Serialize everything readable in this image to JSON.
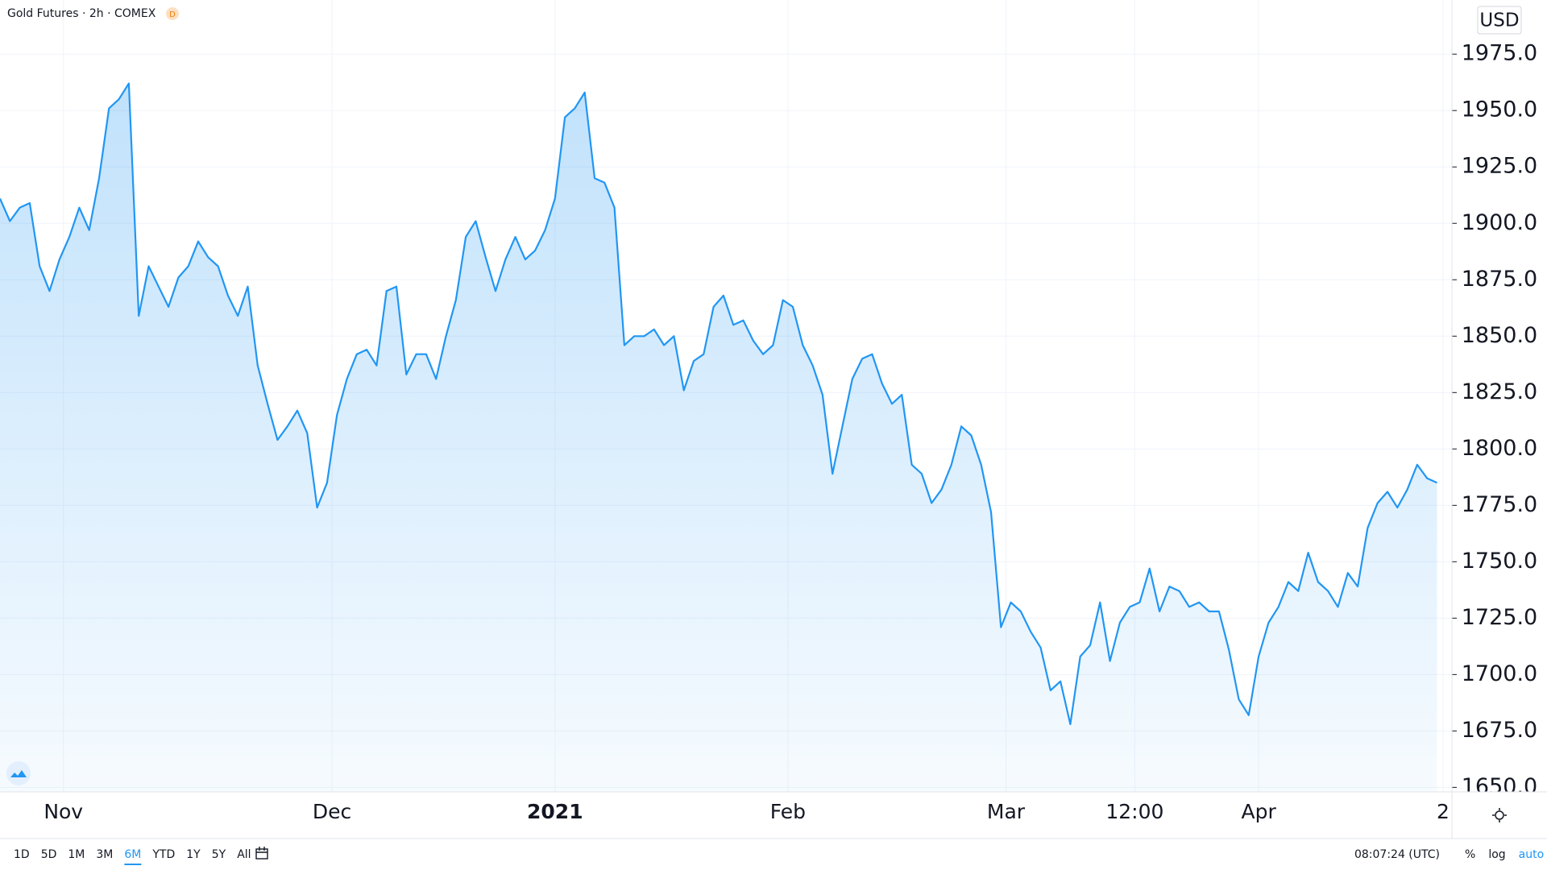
{
  "chart_data": {
    "type": "line",
    "title": "Gold Futures · 2h · COMEX",
    "badge": "D",
    "currency": "USD",
    "color": "#2196f3",
    "fill": true,
    "grid": true,
    "values": [
      1911,
      1901,
      1907,
      1909,
      1881,
      1870,
      1884,
      1894,
      1907,
      1897,
      1920,
      1951,
      1955,
      1962,
      1859,
      1881,
      1872,
      1863,
      1876,
      1881,
      1892,
      1885,
      1881,
      1868,
      1859,
      1872,
      1837,
      1820,
      1804,
      1810,
      1817,
      1807,
      1774,
      1785,
      1815,
      1831,
      1842,
      1844,
      1837,
      1870,
      1872,
      1833,
      1842,
      1842,
      1831,
      1850,
      1866,
      1894,
      1901,
      1885,
      1870,
      1884,
      1894,
      1884,
      1888,
      1897,
      1911,
      1947,
      1951,
      1958,
      1920,
      1918,
      1907,
      1846,
      1850,
      1850,
      1853,
      1846,
      1850,
      1826,
      1839,
      1842,
      1863,
      1868,
      1855,
      1857,
      1848,
      1842,
      1846,
      1866,
      1863,
      1846,
      1837,
      1824,
      1789,
      1810,
      1831,
      1840,
      1842,
      1829,
      1820,
      1824,
      1793,
      1789,
      1776,
      1782,
      1793,
      1810,
      1806,
      1793,
      1772,
      1721,
      1732,
      1728,
      1719,
      1712,
      1693,
      1697,
      1678,
      1708,
      1713,
      1732,
      1706,
      1723,
      1730,
      1732,
      1747,
      1728,
      1739,
      1737,
      1730,
      1732,
      1728,
      1728,
      1711,
      1689,
      1682,
      1708,
      1723,
      1730,
      1741,
      1737,
      1754,
      1741,
      1737,
      1730,
      1745,
      1739,
      1765,
      1776,
      1781,
      1774,
      1782,
      1793,
      1787,
      1785
    ],
    "xlim": [
      0,
      146.5
    ],
    "xticks": [
      {
        "value": 6.4,
        "label": "Nov"
      },
      {
        "value": 33.5,
        "label": "Dec"
      },
      {
        "value": 56,
        "label": "2021"
      },
      {
        "value": 79.5,
        "label": "Feb"
      },
      {
        "value": 101.5,
        "label": "Mar"
      },
      {
        "value": 114.5,
        "label": "12:00"
      },
      {
        "value": 127,
        "label": "Apr"
      },
      {
        "value": 145.6,
        "label": "2"
      }
    ],
    "ylim": [
      1648,
      1999
    ],
    "yticks": [
      {
        "value": 1650,
        "label": "1650.0"
      },
      {
        "value": 1675,
        "label": "1675.0"
      },
      {
        "value": 1700,
        "label": "1700.0"
      },
      {
        "value": 1725,
        "label": "1725.0"
      },
      {
        "value": 1750,
        "label": "1750.0"
      },
      {
        "value": 1775,
        "label": "1775.0"
      },
      {
        "value": 1800,
        "label": "1800.0"
      },
      {
        "value": 1825,
        "label": "1825.0"
      },
      {
        "value": 1850,
        "label": "1850.0"
      },
      {
        "value": 1875,
        "label": "1875.0"
      },
      {
        "value": 1900,
        "label": "1900.0"
      },
      {
        "value": 1925,
        "label": "1925.0"
      },
      {
        "value": 1950,
        "label": "1950.0"
      },
      {
        "value": 1975,
        "label": "1975.0"
      }
    ]
  },
  "toolbar": {
    "ranges": [
      "1D",
      "5D",
      "1M",
      "3M",
      "6M",
      "YTD",
      "1Y",
      "5Y",
      "All"
    ],
    "active": "6M",
    "time": "08:07:24 (UTC)",
    "options": [
      "%",
      "log",
      "auto"
    ]
  }
}
